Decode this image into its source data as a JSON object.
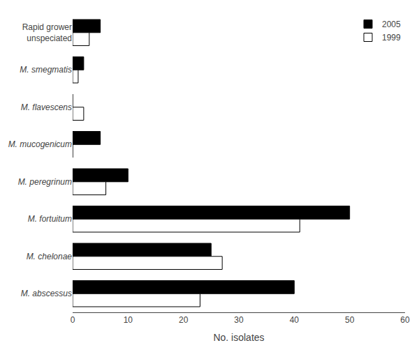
{
  "chart_data": {
    "type": "bar",
    "orientation": "horizontal",
    "categories": [
      "Rapid grower\nunspeciated",
      "M. smegmatis",
      "M. flavescens",
      "M. mucogenicum",
      "M. peregrinum",
      "M. fortuitum",
      "M. chelonae",
      "M. abscessus"
    ],
    "series": [
      {
        "name": "2005",
        "color": "#000000",
        "values": [
          5,
          2,
          0,
          5,
          10,
          50,
          25,
          40
        ]
      },
      {
        "name": "1999",
        "color": "#ffffff",
        "values": [
          3,
          1,
          2,
          0,
          6,
          41,
          27,
          23
        ]
      }
    ],
    "xlabel": "No. isolates",
    "xlim": [
      0,
      60
    ],
    "xticks": [
      0,
      10,
      20,
      30,
      40,
      50,
      60
    ],
    "grid": false,
    "legend": "upper right"
  }
}
